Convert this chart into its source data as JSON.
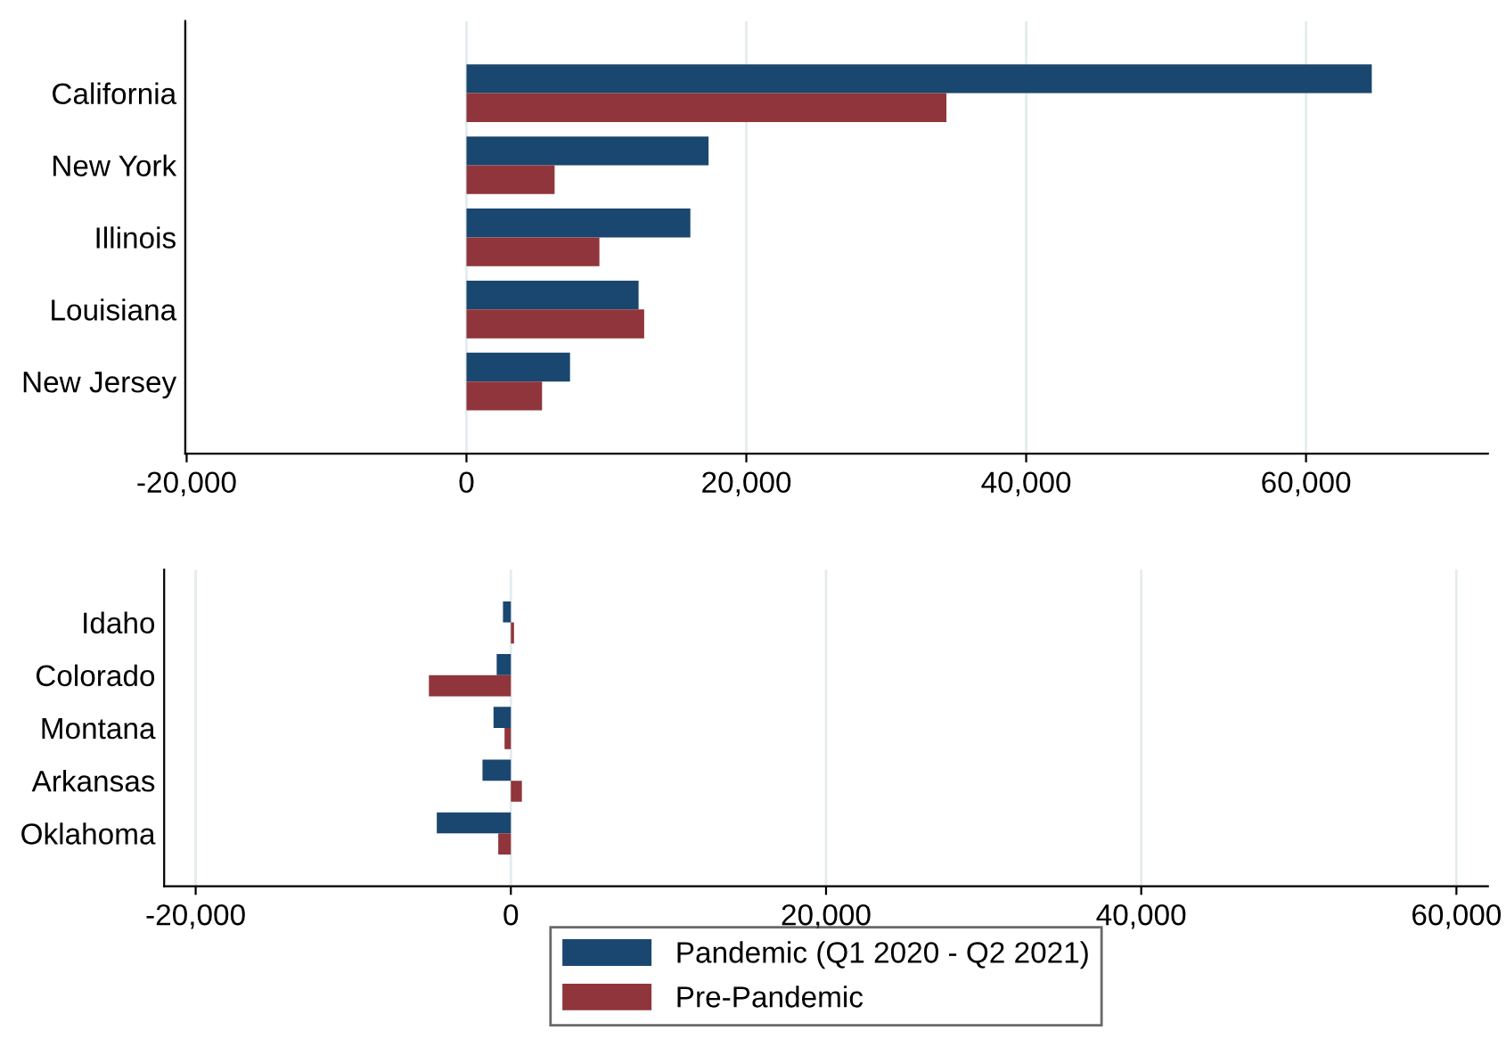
{
  "chart_data": [
    {
      "type": "bar",
      "orientation": "horizontal",
      "categories": [
        "California",
        "New York",
        "Illinois",
        "Louisiana",
        "New Jersey"
      ],
      "series": [
        {
          "color": "#1a476f",
          "values": [
            64700,
            17300,
            16000,
            12300,
            7400
          ]
        },
        {
          "color": "#90353b",
          "values": [
            34300,
            6300,
            9500,
            12700,
            5400
          ]
        }
      ],
      "xlim": [
        -20100,
        73000
      ],
      "xticks": [
        {
          "value": -20000,
          "label": "-20,000"
        },
        {
          "value": 0,
          "label": "0"
        },
        {
          "value": 20000,
          "label": "20,000"
        },
        {
          "value": 40000,
          "label": "40,000"
        },
        {
          "value": 60000,
          "label": "60,000"
        }
      ],
      "grid": "x"
    },
    {
      "type": "bar",
      "orientation": "horizontal",
      "categories": [
        "Idaho",
        "Colorado",
        "Montana",
        "Arkansas",
        "Oklahoma"
      ],
      "series": [
        {
          "name": "Pandemic (Q1 2020 - Q2 2021)",
          "color": "#1a476f",
          "values": [
            -500,
            -900,
            -1100,
            -1800,
            -4700
          ]
        },
        {
          "name": "Pre-Pandemic",
          "color": "#90353b",
          "values": [
            200,
            -5200,
            -400,
            700,
            -800
          ]
        }
      ],
      "xlim": [
        -22000,
        62000
      ],
      "xticks": [
        {
          "value": -20000,
          "label": "-20,000"
        },
        {
          "value": 0,
          "label": "0"
        },
        {
          "value": 20000,
          "label": "20,000"
        },
        {
          "value": 40000,
          "label": "40,000"
        },
        {
          "value": 60000,
          "label": "60,000"
        }
      ],
      "grid": "x",
      "legend": "bottom"
    }
  ]
}
